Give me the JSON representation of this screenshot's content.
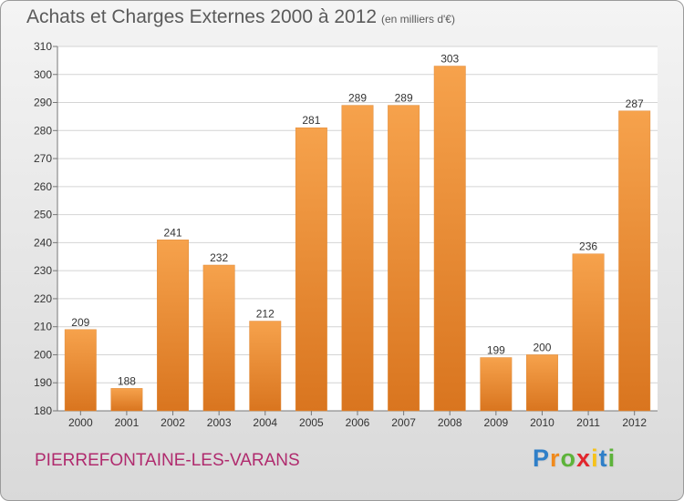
{
  "header": {
    "title": "Achats et Charges Externes 2000 à 2012",
    "unit": "(en milliers d'€)"
  },
  "footer": {
    "commune": "PIERREFONTAINE-LES-VARANS",
    "logo_letters": [
      {
        "ch": "P",
        "color": "#2f7fc8"
      },
      {
        "ch": "r",
        "color": "#f08a1c"
      },
      {
        "ch": "o",
        "color": "#5db33a"
      },
      {
        "ch": "x",
        "color": "#e2262d"
      },
      {
        "ch": "i",
        "color": "#f6c21a"
      },
      {
        "ch": "t",
        "color": "#2f7fc8"
      },
      {
        "ch": "i",
        "color": "#5db33a"
      }
    ]
  },
  "chart_data": {
    "type": "bar",
    "categories": [
      "2000",
      "2001",
      "2002",
      "2003",
      "2004",
      "2005",
      "2006",
      "2007",
      "2008",
      "2009",
      "2010",
      "2011",
      "2012"
    ],
    "values": [
      209,
      188,
      241,
      232,
      212,
      281,
      289,
      289,
      303,
      199,
      200,
      236,
      287
    ],
    "ylim": [
      180,
      310
    ],
    "yticks": [
      180,
      190,
      200,
      210,
      220,
      230,
      240,
      250,
      260,
      270,
      280,
      290,
      300,
      310
    ],
    "grid": true,
    "bar_color_light": "#f6a24c",
    "bar_color_dark": "#d9751f",
    "plot_background": "#ffffff",
    "grid_color": "#d4d4d4"
  }
}
